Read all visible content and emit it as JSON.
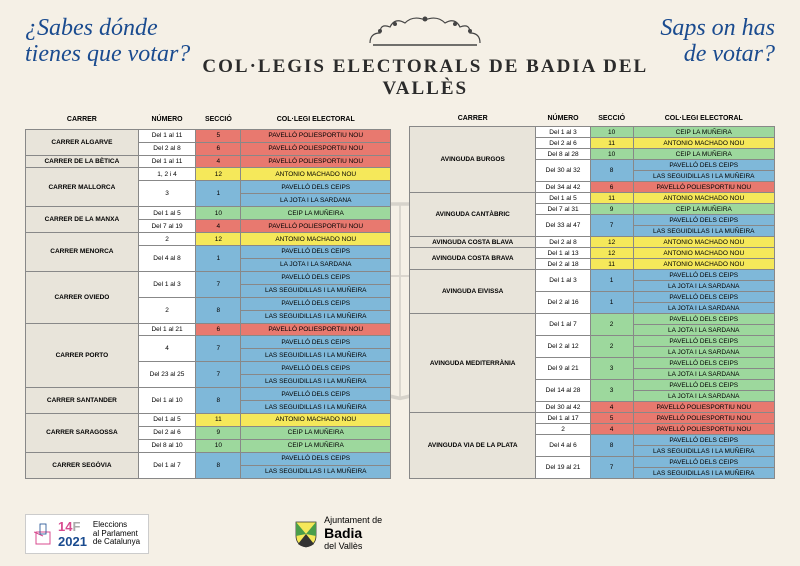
{
  "header": {
    "question_es_l1": "¿Sabes dónde",
    "question_es_l2": "tienes que votar?",
    "question_ca_l1": "Saps on has",
    "question_ca_l2": "de votar?",
    "title": "COL·LEGIS ELECTORALS DE BADIA DEL VALLÈS"
  },
  "columns": {
    "carrer": "CARRER",
    "numero": "NÚMERO",
    "seccio": "SECCIÓ",
    "collegi": "COL·LEGI ELECTORAL"
  },
  "colors": {
    "red": "#e8796f",
    "yellow": "#f5e85a",
    "blue": "#7fb8d9",
    "green": "#9dd89d",
    "street_bg": "#e8e4da",
    "page_bg": "#f5f0e6",
    "title_color": "#1a4b8f"
  },
  "left": [
    {
      "street": "CARRER ALGARVE",
      "rows": [
        {
          "num": "Del 1 al 11",
          "sec": "5",
          "col": "PAVELLÓ POLIESPORTIU NOU",
          "cls": "red"
        },
        {
          "num": "Del 2 al 8",
          "sec": "6",
          "col": "PAVELLÓ POLIESPORTIU NOU",
          "cls": "red"
        }
      ]
    },
    {
      "street": "CARRER DE LA BÈTICA",
      "rows": [
        {
          "num": "Del 1 al 11",
          "sec": "4",
          "col": "PAVELLÓ POLIESPORTIU NOU",
          "cls": "red"
        }
      ]
    },
    {
      "street": "CARRER MALLORCA",
      "rows": [
        {
          "num": "1, 2 i 4",
          "sec": "12",
          "col": "ANTONIO MACHADO NOU",
          "cls": "yellow"
        },
        {
          "num": "3",
          "sec": "1",
          "col": "PAVELLÓ DELS CEIPS",
          "cls": "blue",
          "rowspan": 2
        },
        {
          "col": "LA JOTA I LA SARDANA",
          "cls": "blue"
        }
      ]
    },
    {
      "street": "CARRER DE LA MANXA",
      "rows": [
        {
          "num": "Del 1 al 5",
          "sec": "10",
          "col": "CEIP LA MUÑEIRA",
          "cls": "green"
        },
        {
          "num": "Del 7 al 19",
          "sec": "4",
          "col": "PAVELLÓ POLIESPORTIU NOU",
          "cls": "red"
        }
      ]
    },
    {
      "street": "CARRER MENORCA",
      "rows": [
        {
          "num": "2",
          "sec": "12",
          "col": "ANTONIO MACHADO NOU",
          "cls": "yellow"
        },
        {
          "num": "Del 4 al 8",
          "sec": "1",
          "col": "PAVELLÓ DELS CEIPS",
          "cls": "blue",
          "rowspan": 2
        },
        {
          "col": "LA JOTA I LA SARDANA",
          "cls": "blue"
        }
      ]
    },
    {
      "street": "CARRER OVIEDO",
      "rows": [
        {
          "num": "Del 1 al 3",
          "sec": "7",
          "col": "PAVELLÓ DELS CEIPS",
          "cls": "blue",
          "rowspan": 2
        },
        {
          "col": "LAS SEGUIDILLAS I LA MUÑEIRA",
          "cls": "blue"
        },
        {
          "num": "2",
          "sec": "8",
          "col": "PAVELLÓ DELS CEIPS",
          "cls": "blue",
          "rowspan": 2
        },
        {
          "col": "LAS SEGUIDILLAS I LA MUÑEIRA",
          "cls": "blue"
        }
      ]
    },
    {
      "street": "CARRER PORTO",
      "rows": [
        {
          "num": "Del 1 al 21",
          "sec": "6",
          "col": "PAVELLÓ POLIESPORTIU NOU",
          "cls": "red"
        },
        {
          "num": "4",
          "sec": "7",
          "col": "PAVELLÓ DELS CEIPS",
          "cls": "blue",
          "rowspan": 2
        },
        {
          "col": "LAS SEGUIDILLAS I LA MUÑEIRA",
          "cls": "blue"
        },
        {
          "num": "Del 23 al 25",
          "sec": "7",
          "col": "PAVELLÓ DELS CEIPS",
          "cls": "blue",
          "rowspan": 2
        },
        {
          "col": "LAS SEGUIDILLAS I LA MUÑEIRA",
          "cls": "blue"
        }
      ]
    },
    {
      "street": "CARRER SANTANDER",
      "rows": [
        {
          "num": "Del 1 al 10",
          "sec": "8",
          "col": "PAVELLÓ DELS CEIPS",
          "cls": "blue",
          "rowspan": 2
        },
        {
          "col": "LAS SEGUIDILLAS I LA MUÑEIRA",
          "cls": "blue"
        }
      ]
    },
    {
      "street": "CARRER SARAGOSSA",
      "rows": [
        {
          "num": "Del 1 al 5",
          "sec": "11",
          "col": "ANTONIO MACHADO NOU",
          "cls": "yellow"
        },
        {
          "num": "Del 2 al 6",
          "sec": "9",
          "col": "CEIP LA MUÑEIRA",
          "cls": "green"
        },
        {
          "num": "Del 8 al 10",
          "sec": "10",
          "col": "CEIP LA MUÑEIRA",
          "cls": "green"
        }
      ]
    },
    {
      "street": "CARRER SEGÒVIA",
      "rows": [
        {
          "num": "Del 1 al 7",
          "sec": "8",
          "col": "PAVELLÓ DELS CEIPS",
          "cls": "blue",
          "rowspan": 2
        },
        {
          "col": "LAS SEGUIDILLAS I LA MUÑEIRA",
          "cls": "blue"
        }
      ]
    }
  ],
  "right": [
    {
      "street": "AVINGUDA BURGOS",
      "rows": [
        {
          "num": "Del 1 al 3",
          "sec": "10",
          "col": "CEIP LA MUÑEIRA",
          "cls": "green"
        },
        {
          "num": "Del 2 al 6",
          "sec": "11",
          "col": "ANTONIO MACHADO NOU",
          "cls": "yellow"
        },
        {
          "num": "Del 8 al 28",
          "sec": "10",
          "col": "CEIP LA MUÑEIRA",
          "cls": "green"
        },
        {
          "num": "Del 30 al 32",
          "sec": "8",
          "col": "PAVELLÓ DELS CEIPS",
          "cls": "blue",
          "rowspan": 2
        },
        {
          "col": "LAS SEGUIDILLAS I LA MUÑEIRA",
          "cls": "blue"
        },
        {
          "num": "Del 34 al 42",
          "sec": "6",
          "col": "PAVELLÓ POLIESPORTIU NOU",
          "cls": "red"
        }
      ]
    },
    {
      "street": "AVINGUDA CANTÀBRIC",
      "rows": [
        {
          "num": "Del 1 al 5",
          "sec": "11",
          "col": "ANTONIO MACHADO NOU",
          "cls": "yellow"
        },
        {
          "num": "Del 7 al 31",
          "sec": "9",
          "col": "CEIP LA MUÑEIRA",
          "cls": "green"
        },
        {
          "num": "Del 33 al 47",
          "sec": "7",
          "col": "PAVELLÓ DELS CEIPS",
          "cls": "blue",
          "rowspan": 2
        },
        {
          "col": "LAS SEGUIDILLAS I LA MUÑEIRA",
          "cls": "blue"
        }
      ]
    },
    {
      "street": "AVINGUDA COSTA BLAVA",
      "rows": [
        {
          "num": "Del 2 al 8",
          "sec": "12",
          "col": "ANTONIO MACHADO NOU",
          "cls": "yellow"
        }
      ]
    },
    {
      "street": "AVINGUDA COSTA BRAVA",
      "rows": [
        {
          "num": "Del 1 al 13",
          "sec": "12",
          "col": "ANTONIO MACHADO NOU",
          "cls": "yellow"
        },
        {
          "num": "Del 2 al 18",
          "sec": "11",
          "col": "ANTONIO MACHADO NOU",
          "cls": "yellow"
        }
      ]
    },
    {
      "street": "AVINGUDA EIVISSA",
      "rows": [
        {
          "num": "Del 1 al 3",
          "sec": "1",
          "col": "PAVELLÓ DELS CEIPS",
          "cls": "blue",
          "rowspan": 2
        },
        {
          "col": "LA JOTA I LA SARDANA",
          "cls": "blue"
        },
        {
          "num": "Del 2 al 16",
          "sec": "1",
          "col": "PAVELLÓ DELS CEIPS",
          "cls": "blue",
          "rowspan": 2
        },
        {
          "col": "LA JOTA I LA SARDANA",
          "cls": "blue"
        }
      ]
    },
    {
      "street": "AVINGUDA MEDITERRÀNIA",
      "rows": [
        {
          "num": "Del 1 al 7",
          "sec": "2",
          "col": "PAVELLÓ DELS CEIPS",
          "cls": "green",
          "rowspan": 2
        },
        {
          "col": "LA JOTA I LA SARDANA",
          "cls": "green"
        },
        {
          "num": "Del 2 al 12",
          "sec": "2",
          "col": "PAVELLÓ DELS CEIPS",
          "cls": "green",
          "rowspan": 2
        },
        {
          "col": "LA JOTA I LA SARDANA",
          "cls": "green"
        },
        {
          "num": "Del 9 al 21",
          "sec": "3",
          "col": "PAVELLÓ DELS CEIPS",
          "cls": "green",
          "rowspan": 2
        },
        {
          "col": "LA JOTA I LA SARDANA",
          "cls": "green"
        },
        {
          "num": "Del 14 al 28",
          "sec": "3",
          "col": "PAVELLÓ DELS CEIPS",
          "cls": "green",
          "rowspan": 2
        },
        {
          "col": "LA JOTA I LA SARDANA",
          "cls": "green"
        },
        {
          "num": "Del 30 al 42",
          "sec": "4",
          "col": "PAVELLÓ POLIESPORTIU NOU",
          "cls": "red"
        }
      ]
    },
    {
      "street": "AVINGUDA VIA DE LA PLATA",
      "rows": [
        {
          "num": "Del 1 al 17",
          "sec": "5",
          "col": "PAVELLÓ POLIESPORTIU NOU",
          "cls": "red"
        },
        {
          "num": "2",
          "sec": "4",
          "col": "PAVELLÓ POLIESPORTIU NOU",
          "cls": "red"
        },
        {
          "num": "Del 4 al 6",
          "sec": "8",
          "col": "PAVELLÓ DELS CEIPS",
          "cls": "blue",
          "rowspan": 2
        },
        {
          "col": "LAS SEGUIDILLAS I LA MUÑEIRA",
          "cls": "blue"
        },
        {
          "num": "Del 19 al 21",
          "sec": "7",
          "col": "PAVELLÓ DELS CEIPS",
          "cls": "blue",
          "rowspan": 2
        },
        {
          "col": "LAS SEGUIDILLAS I LA MUÑEIRA",
          "cls": "blue"
        }
      ]
    }
  ],
  "footer": {
    "y14": "14",
    "y2021": "2021",
    "elec_text_l1": "Eleccions",
    "elec_text_l2": "al Parlament",
    "elec_text_l3": "de Catalunya",
    "ajunt_l1": "Ajuntament de",
    "ajunt_badia": "Badia",
    "ajunt_l3": "del Vallès"
  }
}
